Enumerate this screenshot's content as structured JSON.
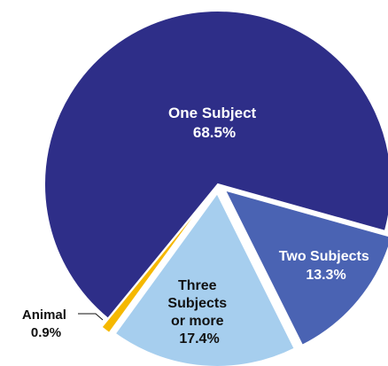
{
  "chart_data": {
    "type": "pie",
    "title": "",
    "slices": [
      {
        "label": "One Subject",
        "value": 68.5,
        "value_label": "68.5%",
        "color": "#2e2e88"
      },
      {
        "label": "Two Subjects",
        "value": 13.3,
        "value_label": "13.3%",
        "color": "#4a63b3"
      },
      {
        "label": "Three Subjects or more",
        "value": 17.4,
        "value_label": "17.4%",
        "color": "#a6ceee"
      },
      {
        "label": "Animal",
        "value": 0.9,
        "value_label": "0.9%",
        "color": "#f5b800"
      }
    ],
    "label_color_on_dark": "#ffffff",
    "label_color_on_light": "#111111",
    "exploded": true,
    "legend": "none"
  }
}
